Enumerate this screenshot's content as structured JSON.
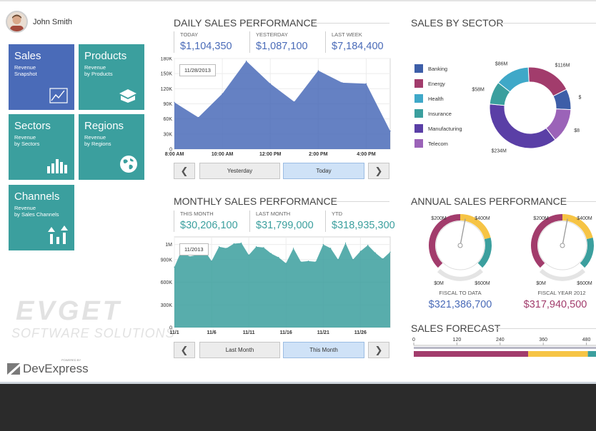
{
  "user": {
    "name": "John Smith"
  },
  "tiles": [
    {
      "title": "Sales",
      "sub1": "Revenue",
      "sub2": "Snapshot"
    },
    {
      "title": "Products",
      "sub1": "Revenue",
      "sub2": "by Products"
    },
    {
      "title": "Sectors",
      "sub1": "Revenue",
      "sub2": "by Sectors"
    },
    {
      "title": "Regions",
      "sub1": "Revenue",
      "sub2": "by Regions"
    },
    {
      "title": "Channels",
      "sub1": "Revenue",
      "sub2": "by Sales Channels"
    }
  ],
  "watermark": {
    "line1": "EVGET",
    "line2": "SOFTWARE SOLUTIONS"
  },
  "brand": {
    "name": "DevExpress",
    "powered": "POWERED BY"
  },
  "colors": {
    "blue": "#4a6bb8",
    "teal": "#3b9f9e",
    "banking": "#3d5ea8",
    "energy": "#a23c6c",
    "health": "#3fa8c8",
    "insurance": "#3b9f9e",
    "manufacturing": "#5a3fa6",
    "telecom": "#9b63b8",
    "gauge_yellow": "#f6c445"
  },
  "daily": {
    "title": "DAILY SALES PERFORMANCE",
    "kpis": [
      {
        "label": "TODAY",
        "value": "$1,104,350"
      },
      {
        "label": "YESTERDAY",
        "value": "$1,087,100"
      },
      {
        "label": "LAST WEEK",
        "value": "$7,184,400"
      }
    ],
    "date": "11/28/2013",
    "prev": "Yesterday",
    "current": "Today"
  },
  "monthly": {
    "title": "MONTHLY SALES PERFORMANCE",
    "kpis": [
      {
        "label": "THIS MONTH",
        "value": "$30,206,100"
      },
      {
        "label": "LAST MONTH",
        "value": "$31,799,000"
      },
      {
        "label": "YTD",
        "value": "$318,935,300"
      }
    ],
    "date": "11/2013",
    "prev": "Last Month",
    "current": "This Month"
  },
  "sector": {
    "title": "SALES BY SECTOR"
  },
  "annual": {
    "title": "ANNUAL SALES PERFORMANCE",
    "gauges": [
      {
        "caption": "FISCAL TO DATA",
        "value": "$321,386,700",
        "color": "#4a6bb8",
        "tick200": "$200M",
        "tick400": "$400M",
        "tick0": "$0M",
        "tick600": "$600M"
      },
      {
        "caption": "FISCAL YEAR 2012",
        "value": "$317,940,500",
        "color": "#a23c6c",
        "tick200": "$200M",
        "tick400": "$400M",
        "tick0": "$0M",
        "tick600": "$600M"
      }
    ]
  },
  "forecast": {
    "title": "SALES FORECAST"
  },
  "chart_data": [
    {
      "type": "area",
      "title": "DAILY SALES PERFORMANCE",
      "x": [
        "8:00 AM",
        "9:00 AM",
        "10:00 AM",
        "11:00 AM",
        "12:00 PM",
        "1:00 PM",
        "2:00 PM",
        "3:00 PM",
        "4:00 PM",
        "5:00 PM"
      ],
      "x_ticks": [
        "8:00 AM",
        "10:00 AM",
        "12:00 PM",
        "2:00 PM",
        "4:00 PM"
      ],
      "values": [
        93000,
        63000,
        110000,
        175000,
        130000,
        94000,
        156000,
        132000,
        130000,
        36000
      ],
      "y_ticks": [
        "0",
        "30K",
        "60K",
        "90K",
        "120K",
        "150K",
        "180K"
      ],
      "ylim": [
        0,
        180000
      ]
    },
    {
      "type": "area",
      "title": "MONTHLY SALES PERFORMANCE",
      "x": [
        1,
        2,
        3,
        4,
        5,
        6,
        7,
        8,
        9,
        10,
        11,
        12,
        13,
        14,
        15,
        16,
        17,
        18,
        19,
        20,
        21,
        22,
        23,
        24,
        25,
        26,
        27,
        28,
        29,
        30
      ],
      "x_ticks": [
        "11/1",
        "11/6",
        "11/11",
        "11/16",
        "11/21",
        "11/26"
      ],
      "values": [
        800000,
        1030000,
        940000,
        960000,
        1030000,
        880000,
        1070000,
        1050000,
        1110000,
        1120000,
        960000,
        1070000,
        1060000,
        980000,
        930000,
        850000,
        1050000,
        870000,
        880000,
        870000,
        1100000,
        1050000,
        900000,
        1120000,
        900000,
        1010000,
        1090000,
        990000,
        910000,
        1000000
      ],
      "y_ticks": [
        "0",
        "300K",
        "600K",
        "900K",
        "1M"
      ],
      "ylim": [
        0,
        1200000
      ]
    },
    {
      "type": "pie",
      "title": "SALES BY SECTOR",
      "labels": [
        "Banking",
        "Energy",
        "Health",
        "Insurance",
        "Manufacturing",
        "Telecom"
      ],
      "slice_order": [
        "Energy",
        "Banking",
        "Telecom",
        "Manufacturing",
        "Insurance",
        "Health"
      ],
      "slice_values": [
        116,
        52,
        87,
        234,
        58,
        86
      ],
      "slice_labels": [
        "$116M",
        "$",
        "$8",
        "$234M",
        "$58M",
        "$86M"
      ]
    },
    {
      "type": "bar",
      "title": "SALES FORECAST",
      "x_ticks": [
        "0",
        "120",
        "240",
        "360",
        "480"
      ],
      "segments": [
        {
          "value": 0,
          "end": 318,
          "color": "#a23c6c"
        },
        {
          "value": 318,
          "end": 484,
          "color": "#f6c445"
        },
        {
          "value": 484,
          "end": 600,
          "color": "#3b9f9e"
        }
      ],
      "xlim": [
        0,
        600
      ]
    }
  ]
}
